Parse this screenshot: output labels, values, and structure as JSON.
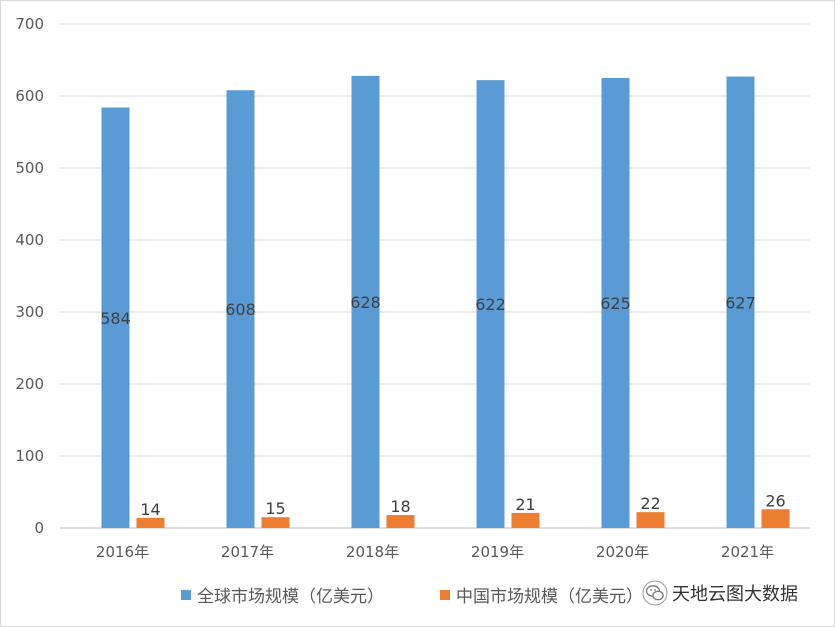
{
  "chart_data": {
    "type": "bar",
    "categories": [
      "2016年",
      "2017年",
      "2018年",
      "2019年",
      "2020年",
      "2021年"
    ],
    "series": [
      {
        "name": "全球市场规模（亿美元）",
        "values": [
          584,
          608,
          628,
          622,
          625,
          627
        ],
        "color": "#5b9bd5"
      },
      {
        "name": "中国市场规模（亿美元）",
        "values": [
          14,
          15,
          18,
          21,
          22,
          26
        ],
        "color": "#ed7d31"
      }
    ],
    "yticks": [
      0,
      100,
      200,
      300,
      400,
      500,
      600,
      700
    ],
    "ylim": [
      0,
      700
    ],
    "grid": true,
    "legend_position": "bottom",
    "title": "",
    "xlabel": "",
    "ylabel": ""
  },
  "watermark": {
    "text": "天地云图大数据",
    "icon": "wechat-icon"
  }
}
